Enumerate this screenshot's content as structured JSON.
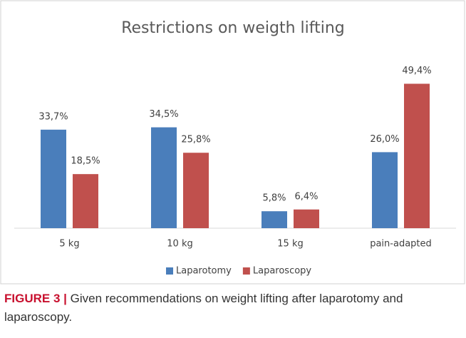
{
  "chart_data": {
    "type": "bar",
    "title": "Restrictions on weigth lifting",
    "categories": [
      "5 kg",
      "10 kg",
      "15 kg",
      "pain-adapted"
    ],
    "series": [
      {
        "name": "Laparotomy",
        "color": "#4a7ebb",
        "values": [
          33.7,
          34.5,
          5.8,
          26.0
        ],
        "value_labels": [
          "33,7%",
          "34,5%",
          "5,8%",
          "26,0%"
        ]
      },
      {
        "name": "Laparoscopy",
        "color": "#c0504d",
        "values": [
          18.5,
          25.8,
          6.4,
          49.4
        ],
        "value_labels": [
          "18,5%",
          "25,8%",
          "6,4%",
          "49,4%"
        ]
      }
    ],
    "ylim": [
      0,
      60
    ],
    "legend": "bottom"
  },
  "caption": {
    "label": "FIGURE 3 |",
    "text": "Given recommendations on weight lifting after laparotomy and laparoscopy."
  }
}
